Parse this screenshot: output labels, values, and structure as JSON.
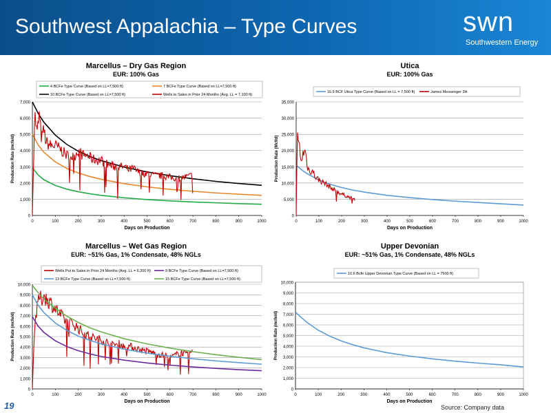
{
  "header": {
    "title": "Southwest Appalachia – Type Curves",
    "logo_word": "swn",
    "logo_sub": "Southwestern Energy",
    "logo_icon": "swn-logo-icon"
  },
  "footer": {
    "page_number": "19",
    "source": "Source: Company data"
  },
  "colors": {
    "header_bg": "#0d66b0",
    "green": "#22aa44",
    "orange": "#e8862a",
    "black": "#000000",
    "red": "#c00000",
    "blue": "#5b9bd5",
    "purple": "#6a2a9a",
    "lightgreen": "#6ab04c"
  },
  "chart_data": [
    {
      "id": "dry",
      "type": "line",
      "title": "Marcellus – Dry Gas Region",
      "subtitle": "EUR: 100% Gas",
      "xlabel": "Days on Production",
      "ylabel": "Production Rate (mcfe/d)",
      "xlim": [
        0,
        1000
      ],
      "ylim": [
        0,
        7000
      ],
      "xticks": [
        0,
        100,
        200,
        300,
        400,
        500,
        600,
        700,
        800,
        900,
        1000
      ],
      "yticks": [
        0,
        1000,
        2000,
        3000,
        4000,
        5000,
        6000,
        7000
      ],
      "ytick_labels": [
        "0",
        "1,000",
        "2,000",
        "3,000",
        "4,000",
        "5,000",
        "6,000",
        "7,000"
      ],
      "legend_position": "top",
      "series": [
        {
          "name": "4 BCFe Type Curve (Based on LL=7,500 ft)",
          "color": "#22aa44",
          "curve": "type",
          "x": [
            0,
            25,
            50,
            100,
            150,
            200,
            250,
            300,
            400,
            500,
            600,
            700,
            800,
            900,
            1000
          ],
          "y": [
            2950,
            2500,
            2200,
            1850,
            1620,
            1460,
            1340,
            1240,
            1090,
            980,
            900,
            830,
            780,
            730,
            690
          ]
        },
        {
          "name": "7 BCFe Type Curve (Based on LL=7,500 ft)",
          "color": "#e8862a",
          "curve": "type",
          "x": [
            0,
            25,
            50,
            100,
            150,
            200,
            250,
            300,
            400,
            500,
            600,
            700,
            800,
            900,
            1000
          ],
          "y": [
            5000,
            4350,
            3900,
            3300,
            2900,
            2620,
            2400,
            2230,
            1960,
            1760,
            1610,
            1490,
            1390,
            1310,
            1240
          ]
        },
        {
          "name": "10 BCFe Type Curve (Based on LL=7,500 ft)",
          "color": "#000000",
          "curve": "type",
          "x": [
            0,
            25,
            50,
            100,
            150,
            200,
            250,
            300,
            400,
            500,
            600,
            700,
            800,
            900,
            1000
          ],
          "y": [
            7000,
            6300,
            5750,
            4950,
            4380,
            3960,
            3640,
            3380,
            2980,
            2680,
            2450,
            2260,
            2100,
            1970,
            1860
          ]
        },
        {
          "name": "Wells to Sales in Prior 24 Months (Avg. LL = 7,100 ft)",
          "color": "#c00000",
          "curve": "actual",
          "x": [
            0,
            10,
            20,
            30,
            40,
            50,
            60,
            80,
            100,
            120,
            150,
            180,
            200,
            220,
            240,
            260,
            280,
            300,
            320,
            340,
            360,
            380,
            400,
            420,
            440,
            460,
            480,
            500,
            520,
            540,
            560,
            580,
            600,
            620,
            640,
            660,
            680,
            700
          ],
          "y": [
            0,
            6400,
            5000,
            6200,
            4700,
            5300,
            4500,
            4300,
            4300,
            4100,
            3700,
            3600,
            4000,
            3700,
            3700,
            3500,
            3400,
            3400,
            3200,
            3100,
            3000,
            3000,
            3000,
            2800,
            2900,
            2700,
            2600,
            2600,
            2500,
            2450,
            2450,
            2400,
            2350,
            2300,
            2300,
            2350,
            2400,
            2500
          ]
        }
      ]
    },
    {
      "id": "utica",
      "type": "line",
      "title": "Utica",
      "subtitle": "EUR: 100% Gas",
      "xlabel": "Days on Production",
      "ylabel": "Production Rate (Mcf/d)",
      "xlim": [
        0,
        1000
      ],
      "ylim": [
        0,
        35000
      ],
      "xticks": [
        0,
        100,
        200,
        300,
        400,
        500,
        600,
        700,
        800,
        900,
        1000
      ],
      "yticks": [
        0,
        5000,
        10000,
        15000,
        20000,
        25000,
        30000,
        35000
      ],
      "ytick_labels": [
        "0",
        "5,000",
        "10,000",
        "15,000",
        "20,000",
        "25,000",
        "30,000",
        "35,000"
      ],
      "legend_position": "top",
      "series": [
        {
          "name": "16.5 BCF Utica Type Curve (Based on LL = 7,500 ft)",
          "color": "#5b9bd5",
          "curve": "type",
          "x": [
            0,
            25,
            50,
            100,
            150,
            200,
            250,
            300,
            400,
            500,
            600,
            700,
            800,
            900,
            1000
          ],
          "y": [
            15500,
            14000,
            12800,
            10900,
            9600,
            8600,
            7800,
            7200,
            6200,
            5500,
            4900,
            4400,
            4000,
            3600,
            3200
          ]
        },
        {
          "name": "James Messenger 3H",
          "color": "#c00000",
          "curve": "actual",
          "x": [
            0,
            5,
            10,
            15,
            20,
            30,
            40,
            50,
            60,
            70,
            80,
            90,
            100,
            120,
            140,
            160,
            180,
            200,
            220,
            240,
            260
          ],
          "y": [
            0,
            25000,
            21000,
            22000,
            16000,
            19000,
            20000,
            15000,
            13500,
            14000,
            12500,
            11500,
            11000,
            10200,
            9200,
            8200,
            7400,
            6600,
            6000,
            5400,
            5000
          ]
        }
      ]
    },
    {
      "id": "wet",
      "type": "line",
      "title": "Marcellus – Wet Gas Region",
      "subtitle": "EUR: ~51% Gas, 1% Condensate, 48% NGLs",
      "xlabel": "Days on Production",
      "ylabel": "Production Rate (mcfe/d)",
      "xlim": [
        0,
        1000
      ],
      "ylim": [
        0,
        10000
      ],
      "xticks": [
        0,
        100,
        200,
        300,
        400,
        500,
        600,
        700,
        800,
        900,
        1000
      ],
      "yticks": [
        0,
        1000,
        2000,
        3000,
        4000,
        5000,
        6000,
        7000,
        8000,
        9000,
        10000
      ],
      "ytick_labels": [
        "0",
        "1,000",
        "2,000",
        "3,000",
        "4,000",
        "5,000",
        "6,000",
        "7,000",
        "8,000",
        "9,000",
        "10,000"
      ],
      "legend_position": "top",
      "series": [
        {
          "name": "Wells Put to Sales in Prior 24 Months (Avg. LL = 6,200 ft)",
          "color": "#c00000",
          "curve": "actual",
          "x": [
            0,
            10,
            20,
            30,
            40,
            50,
            60,
            80,
            100,
            120,
            150,
            180,
            200,
            220,
            250,
            280,
            300,
            320,
            350,
            380,
            400,
            420,
            450,
            480,
            500,
            520,
            550,
            580,
            600,
            620,
            650,
            680,
            700
          ],
          "y": [
            0,
            6200,
            7500,
            8800,
            8500,
            9000,
            8600,
            8200,
            7700,
            7100,
            6400,
            6200,
            5800,
            5400,
            5000,
            4800,
            4700,
            4500,
            4200,
            4300,
            4000,
            4100,
            3900,
            3700,
            3600,
            3500,
            3300,
            3200,
            3000,
            3200,
            3500,
            3200,
            3700
          ]
        },
        {
          "name": "9 BCFe Type Curve (Based on LL=7,500 ft)",
          "color": "#6a2a9a",
          "curve": "type",
          "x": [
            0,
            25,
            50,
            100,
            150,
            200,
            250,
            300,
            400,
            500,
            600,
            700,
            800,
            900,
            1000
          ],
          "y": [
            6900,
            6000,
            5400,
            4600,
            4050,
            3650,
            3350,
            3100,
            2750,
            2480,
            2270,
            2100,
            1960,
            1840,
            1740
          ]
        },
        {
          "name": "13 BCFe Type Curve (Based on LL=7,500 ft)",
          "color": "#5b9bd5",
          "curve": "type",
          "x": [
            0,
            25,
            50,
            100,
            150,
            200,
            250,
            300,
            400,
            500,
            600,
            700,
            800,
            900,
            1000
          ],
          "y": [
            9000,
            8000,
            7300,
            6300,
            5600,
            5050,
            4650,
            4300,
            3800,
            3420,
            3120,
            2880,
            2680,
            2510,
            2360
          ]
        },
        {
          "name": "15 BCFe Type Curve (Based on LL=7,500 ft)",
          "color": "#6ab04c",
          "curve": "type",
          "x": [
            0,
            25,
            50,
            100,
            150,
            200,
            250,
            300,
            400,
            500,
            600,
            700,
            800,
            900,
            1000
          ],
          "y": [
            9900,
            9200,
            8600,
            7700,
            6950,
            6350,
            5850,
            5450,
            4800,
            4300,
            3900,
            3560,
            3270,
            3020,
            2800
          ]
        }
      ]
    },
    {
      "id": "devonian",
      "type": "line",
      "title": "Upper Devonian",
      "subtitle": "EUR: ~51% Gas, 1% Condensate, 48% NGLs",
      "xlabel": "Days on Production",
      "ylabel": "Production Rate (mcfe/d)",
      "xlim": [
        0,
        1000
      ],
      "ylim": [
        0,
        10000
      ],
      "xticks": [
        0,
        100,
        200,
        300,
        400,
        500,
        600,
        700,
        800,
        900,
        1000
      ],
      "yticks": [
        0,
        1000,
        2000,
        3000,
        4000,
        5000,
        6000,
        7000,
        8000,
        9000,
        10000
      ],
      "ytick_labels": [
        "0",
        "1,000",
        "2,000",
        "3,000",
        "4,000",
        "5,000",
        "6,000",
        "7,000",
        "8,000",
        "9,000",
        "10,000"
      ],
      "legend_position": "top-left",
      "series": [
        {
          "name": "10.6 Bcfe Upper Devonian Type Curve (Based on LL = 7500 ft)",
          "color": "#5b9bd5",
          "curve": "type",
          "x": [
            0,
            25,
            50,
            100,
            150,
            200,
            250,
            300,
            400,
            500,
            600,
            700,
            800,
            900,
            1000
          ],
          "y": [
            7200,
            6700,
            6250,
            5500,
            4950,
            4500,
            4150,
            3850,
            3400,
            3080,
            2820,
            2600,
            2420,
            2260,
            2060
          ]
        }
      ]
    }
  ]
}
